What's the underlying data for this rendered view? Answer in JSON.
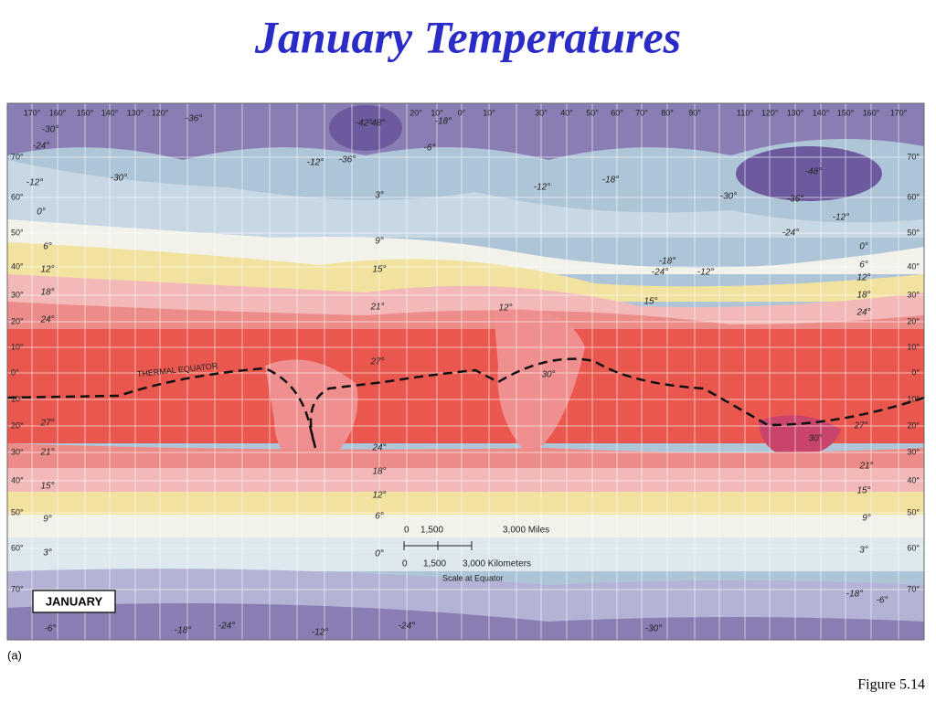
{
  "title": "January Temperatures",
  "map": {
    "longitude_labels": [
      "170°",
      "160°",
      "150°",
      "140°",
      "130°",
      "120°",
      "20°",
      "10°",
      "0°",
      "10°",
      "30°",
      "40°",
      "50°",
      "60°",
      "70°",
      "80°",
      "90°",
      "110°",
      "120°",
      "130°",
      "140°",
      "150°",
      "160°",
      "170°"
    ],
    "latitude_labels_left": [
      "70°",
      "60°",
      "50°",
      "40°",
      "30°",
      "20°",
      "10°",
      "0°",
      "10°",
      "20°",
      "30°",
      "40°",
      "50°",
      "60°",
      "70°"
    ],
    "latitude_labels_right": [
      "70°",
      "60°",
      "50°",
      "40°",
      "30°",
      "20°",
      "10°",
      "0°",
      "10°",
      "20°",
      "30°",
      "40°",
      "50°",
      "60°",
      "70°"
    ],
    "isotherm_labels": [
      "-30°",
      "-24°",
      "-12°",
      "0°",
      "6°",
      "12°",
      "18°",
      "24°",
      "27°",
      "21°",
      "15°",
      "9°",
      "3°",
      "-6°",
      "-18°",
      "-24°",
      "-12°",
      "-24°",
      "-30°",
      "-18°",
      "-6°",
      "3°",
      "9°",
      "15°",
      "21°",
      "27°",
      "30°",
      "24°",
      "18°",
      "12°",
      "6°",
      "0°",
      "-24°",
      "-12°",
      "-36°",
      "-48°",
      "-30°",
      "-18°",
      "-12°",
      "-18°",
      "-24°",
      "-12°",
      "15°",
      "12°",
      "21°",
      "27°",
      "24°",
      "18°",
      "12°",
      "6°",
      "0°",
      "15°",
      "9°",
      "3°",
      "-6°",
      "-18°",
      "-12°",
      "-36°",
      "-30°",
      "-42°",
      "-48°",
      "-36°",
      "30°"
    ],
    "thermal_equator": "THERMAL EQUATOR",
    "scale": {
      "miles": [
        "0",
        "1,500",
        "3,000 Miles"
      ],
      "kilometers": [
        "0",
        "1,500",
        "3,000 Kilometers"
      ],
      "note": "Scale at Equator"
    },
    "month_box": "JANUARY"
  },
  "panel_label": "(a)",
  "figure_label": "Figure  5.14"
}
